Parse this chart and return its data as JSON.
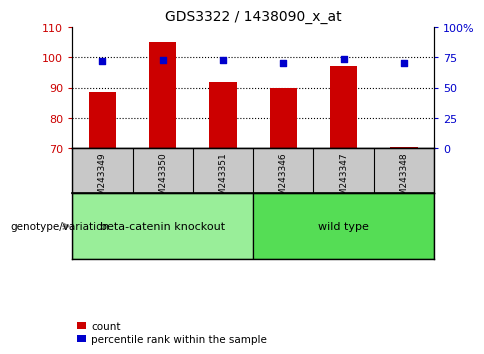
{
  "title": "GDS3322 / 1438090_x_at",
  "samples": [
    "GSM243349",
    "GSM243350",
    "GSM243351",
    "GSM243346",
    "GSM243347",
    "GSM243348"
  ],
  "counts": [
    88.5,
    105.0,
    92.0,
    90.0,
    97.0,
    70.5
  ],
  "percentile_ranks": [
    72.0,
    73.0,
    72.5,
    70.5,
    73.5,
    70.0
  ],
  "ylim_left": [
    70,
    110
  ],
  "ylim_right": [
    0,
    100
  ],
  "yticks_left": [
    70,
    80,
    90,
    100,
    110
  ],
  "yticks_right": [
    0,
    25,
    50,
    75,
    100
  ],
  "bar_color": "#cc0000",
  "dot_color": "#0000cc",
  "bar_bottom": 70,
  "groups": [
    {
      "label": "beta-catenin knockout",
      "indices": [
        0,
        1,
        2
      ],
      "color": "#99ee99"
    },
    {
      "label": "wild type",
      "indices": [
        3,
        4,
        5
      ],
      "color": "#55dd55"
    }
  ],
  "genotype_label": "genotype/variation",
  "legend_count": "count",
  "legend_percentile": "percentile rank within the sample",
  "background_tick_area": "#c8c8c8",
  "left_label_color": "#cc0000",
  "right_label_color": "#0000cc",
  "dotted_lines": [
    80,
    90,
    100
  ]
}
